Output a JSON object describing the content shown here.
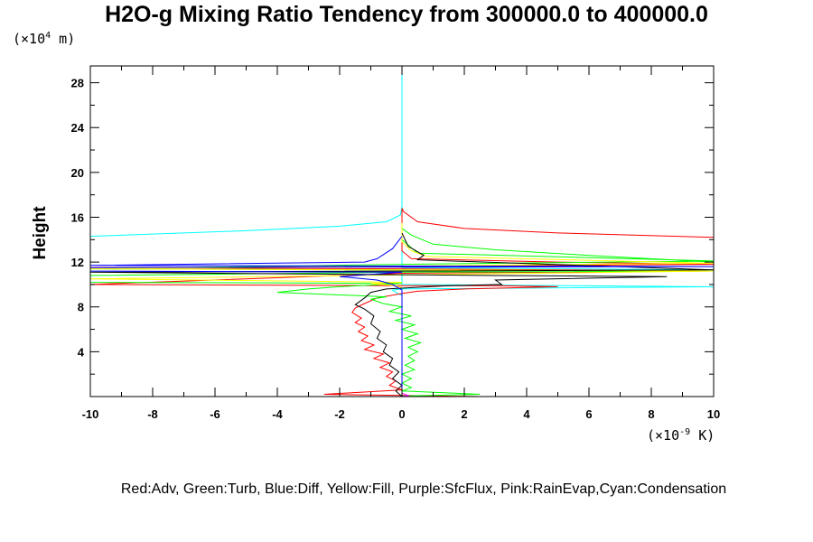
{
  "chart_data": {
    "type": "line",
    "title": "H2O-g Mixing Ratio Tendency from 300000.0 to 400000.0",
    "ylabel": "Height",
    "y_unit_prefix": "(×10",
    "y_unit_exp": "4",
    "y_unit_suffix": " m)",
    "x_unit_prefix": "(×10",
    "x_unit_exp": "-9",
    "x_unit_suffix": " K)",
    "legend_text": "Red:Adv, Green:Turb, Blue:Diff, Yellow:Fill, Purple:SfcFlux, Pink:RainEvap,Cyan:Condensation",
    "xlim": [
      -10,
      10
    ],
    "ylim": [
      0,
      29.5
    ],
    "x_ticks": [
      -10,
      -8,
      -6,
      -4,
      -2,
      0,
      2,
      4,
      6,
      8,
      10
    ],
    "y_ticks": [
      4,
      8,
      12,
      16,
      20,
      24,
      28
    ],
    "series": [
      {
        "color": "#00ffff",
        "points": [
          [
            -10,
            14.3
          ],
          [
            -5,
            14.8
          ],
          [
            -2,
            15.2
          ],
          [
            -0.5,
            15.6
          ],
          [
            -0.05,
            16.2
          ],
          [
            0,
            17
          ],
          [
            0,
            29.5
          ],
          [
            0,
            11.5
          ],
          [
            10,
            11.3
          ],
          [
            0,
            11.2
          ],
          [
            0,
            10
          ],
          [
            10,
            9.8
          ],
          [
            0,
            9.6
          ],
          [
            -0.3,
            9.5
          ],
          [
            -0.2,
            9.3
          ],
          [
            0,
            9
          ],
          [
            0,
            0
          ]
        ]
      },
      {
        "color": "#ff0000",
        "points": [
          [
            10,
            14.2
          ],
          [
            5,
            14.6
          ],
          [
            2,
            15
          ],
          [
            0.5,
            15.6
          ],
          [
            0.05,
            16.5
          ],
          [
            0,
            16.8
          ],
          [
            0,
            13
          ],
          [
            0.3,
            12.3
          ],
          [
            5,
            12
          ],
          [
            10,
            11.8
          ],
          [
            0,
            11.6
          ],
          [
            -10,
            11.5
          ],
          [
            0,
            11.4
          ],
          [
            10,
            11.2
          ],
          [
            0,
            11
          ],
          [
            -10,
            10
          ],
          [
            0,
            9.9
          ],
          [
            3,
            9.9
          ],
          [
            5,
            9.8
          ],
          [
            2,
            9.6
          ],
          [
            0.5,
            9.4
          ],
          [
            0,
            9.2
          ],
          [
            -0.8,
            8.8
          ],
          [
            -1.2,
            8.3
          ],
          [
            -1.5,
            7.9
          ],
          [
            -1.6,
            7.5
          ],
          [
            -1.3,
            7
          ],
          [
            -1.5,
            6.6
          ],
          [
            -1.2,
            6.2
          ],
          [
            -1.4,
            5.8
          ],
          [
            -1.1,
            5.4
          ],
          [
            -1.3,
            5
          ],
          [
            -0.9,
            4.6
          ],
          [
            -1.2,
            4.2
          ],
          [
            -0.6,
            3.8
          ],
          [
            -0.9,
            3.4
          ],
          [
            -0.4,
            3
          ],
          [
            -0.7,
            2.6
          ],
          [
            -0.3,
            2.2
          ],
          [
            -0.5,
            1.8
          ],
          [
            -0.2,
            1.4
          ],
          [
            -0.4,
            1
          ],
          [
            0,
            0.6
          ],
          [
            -2.5,
            0.2
          ],
          [
            0,
            0.1
          ],
          [
            2.5,
            0
          ]
        ]
      },
      {
        "color": "#00ff00",
        "points": [
          [
            10,
            12
          ],
          [
            6,
            12.6
          ],
          [
            3,
            13.1
          ],
          [
            1,
            13.6
          ],
          [
            0.3,
            14.4
          ],
          [
            0,
            15
          ],
          [
            0,
            14
          ],
          [
            0.5,
            12.8
          ],
          [
            10,
            12.1
          ],
          [
            0,
            11.8
          ],
          [
            -10,
            11.4
          ],
          [
            0,
            11.3
          ],
          [
            10,
            11.2
          ],
          [
            0,
            11.1
          ],
          [
            -10,
            10.8
          ],
          [
            -10,
            10.2
          ],
          [
            0,
            10.1
          ],
          [
            -2,
            9.8
          ],
          [
            -3,
            9.6
          ],
          [
            -4,
            9.3
          ],
          [
            -0.5,
            8.9
          ],
          [
            -1,
            8.7
          ],
          [
            -0.6,
            8.3
          ],
          [
            0,
            8
          ],
          [
            -0.4,
            7.6
          ],
          [
            0.3,
            7.2
          ],
          [
            -0.2,
            6.8
          ],
          [
            0.4,
            6.4
          ],
          [
            0,
            6
          ],
          [
            0.5,
            5.6
          ],
          [
            0.1,
            5.2
          ],
          [
            0.6,
            4.8
          ],
          [
            0.2,
            4.4
          ],
          [
            0.5,
            4
          ],
          [
            0.2,
            3.6
          ],
          [
            0.4,
            3.2
          ],
          [
            0.1,
            2.8
          ],
          [
            0.4,
            2.4
          ],
          [
            0,
            2
          ],
          [
            0.3,
            1.6
          ],
          [
            0,
            1.2
          ],
          [
            0.3,
            0.8
          ],
          [
            0,
            0.5
          ],
          [
            2.5,
            0.2
          ],
          [
            0,
            0.05
          ]
        ]
      },
      {
        "color": "#ffff00",
        "points": [
          [
            0,
            15.5
          ],
          [
            0,
            13.8
          ],
          [
            0.3,
            13
          ],
          [
            0.8,
            12.5
          ],
          [
            10,
            11.9
          ],
          [
            -10,
            11.4
          ],
          [
            10,
            11.2
          ],
          [
            -10,
            10.5
          ],
          [
            0,
            10.2
          ],
          [
            -1,
            10.1
          ],
          [
            -0.2,
            9.9
          ],
          [
            0,
            9.7
          ]
        ]
      },
      {
        "color": "#000000",
        "points": [
          [
            0,
            14.6
          ],
          [
            0.2,
            13.4
          ],
          [
            0.7,
            12.6
          ],
          [
            0.5,
            12.2
          ],
          [
            10,
            11.3
          ],
          [
            -10,
            11.1
          ],
          [
            3,
            10.8
          ],
          [
            8.5,
            10.7
          ],
          [
            3,
            10.4
          ],
          [
            3.2,
            10
          ],
          [
            1.5,
            9.9
          ],
          [
            -0.5,
            9.6
          ],
          [
            -1,
            9.3
          ],
          [
            -1.2,
            8.8
          ],
          [
            -1.5,
            8.2
          ],
          [
            -1.2,
            7.8
          ],
          [
            -0.9,
            7.2
          ],
          [
            -1,
            6.5
          ],
          [
            -0.7,
            5.8
          ],
          [
            -0.8,
            5.2
          ],
          [
            -0.5,
            4.6
          ],
          [
            -0.6,
            4
          ],
          [
            -0.3,
            3.4
          ],
          [
            -0.4,
            2.8
          ],
          [
            -0.1,
            2.2
          ],
          [
            -0.3,
            1.6
          ],
          [
            0,
            1
          ],
          [
            -0.2,
            0.5
          ],
          [
            0,
            0
          ]
        ]
      },
      {
        "color": "#0000ff",
        "points": [
          [
            0,
            14.3
          ],
          [
            -0.3,
            13.2
          ],
          [
            -0.8,
            12.3
          ],
          [
            -1.2,
            12
          ],
          [
            -10,
            11.7
          ],
          [
            10,
            11.6
          ],
          [
            -10,
            11.5
          ],
          [
            -10,
            11.2
          ],
          [
            0,
            11.1
          ],
          [
            -2,
            10.7
          ],
          [
            -0.8,
            10.4
          ],
          [
            -0.3,
            10
          ],
          [
            0,
            9.5
          ],
          [
            0,
            0
          ]
        ]
      },
      {
        "color": "#ff00ff",
        "points": [
          [
            0,
            0.3
          ],
          [
            0.2,
            0.1
          ],
          [
            0,
            0
          ]
        ]
      }
    ]
  }
}
